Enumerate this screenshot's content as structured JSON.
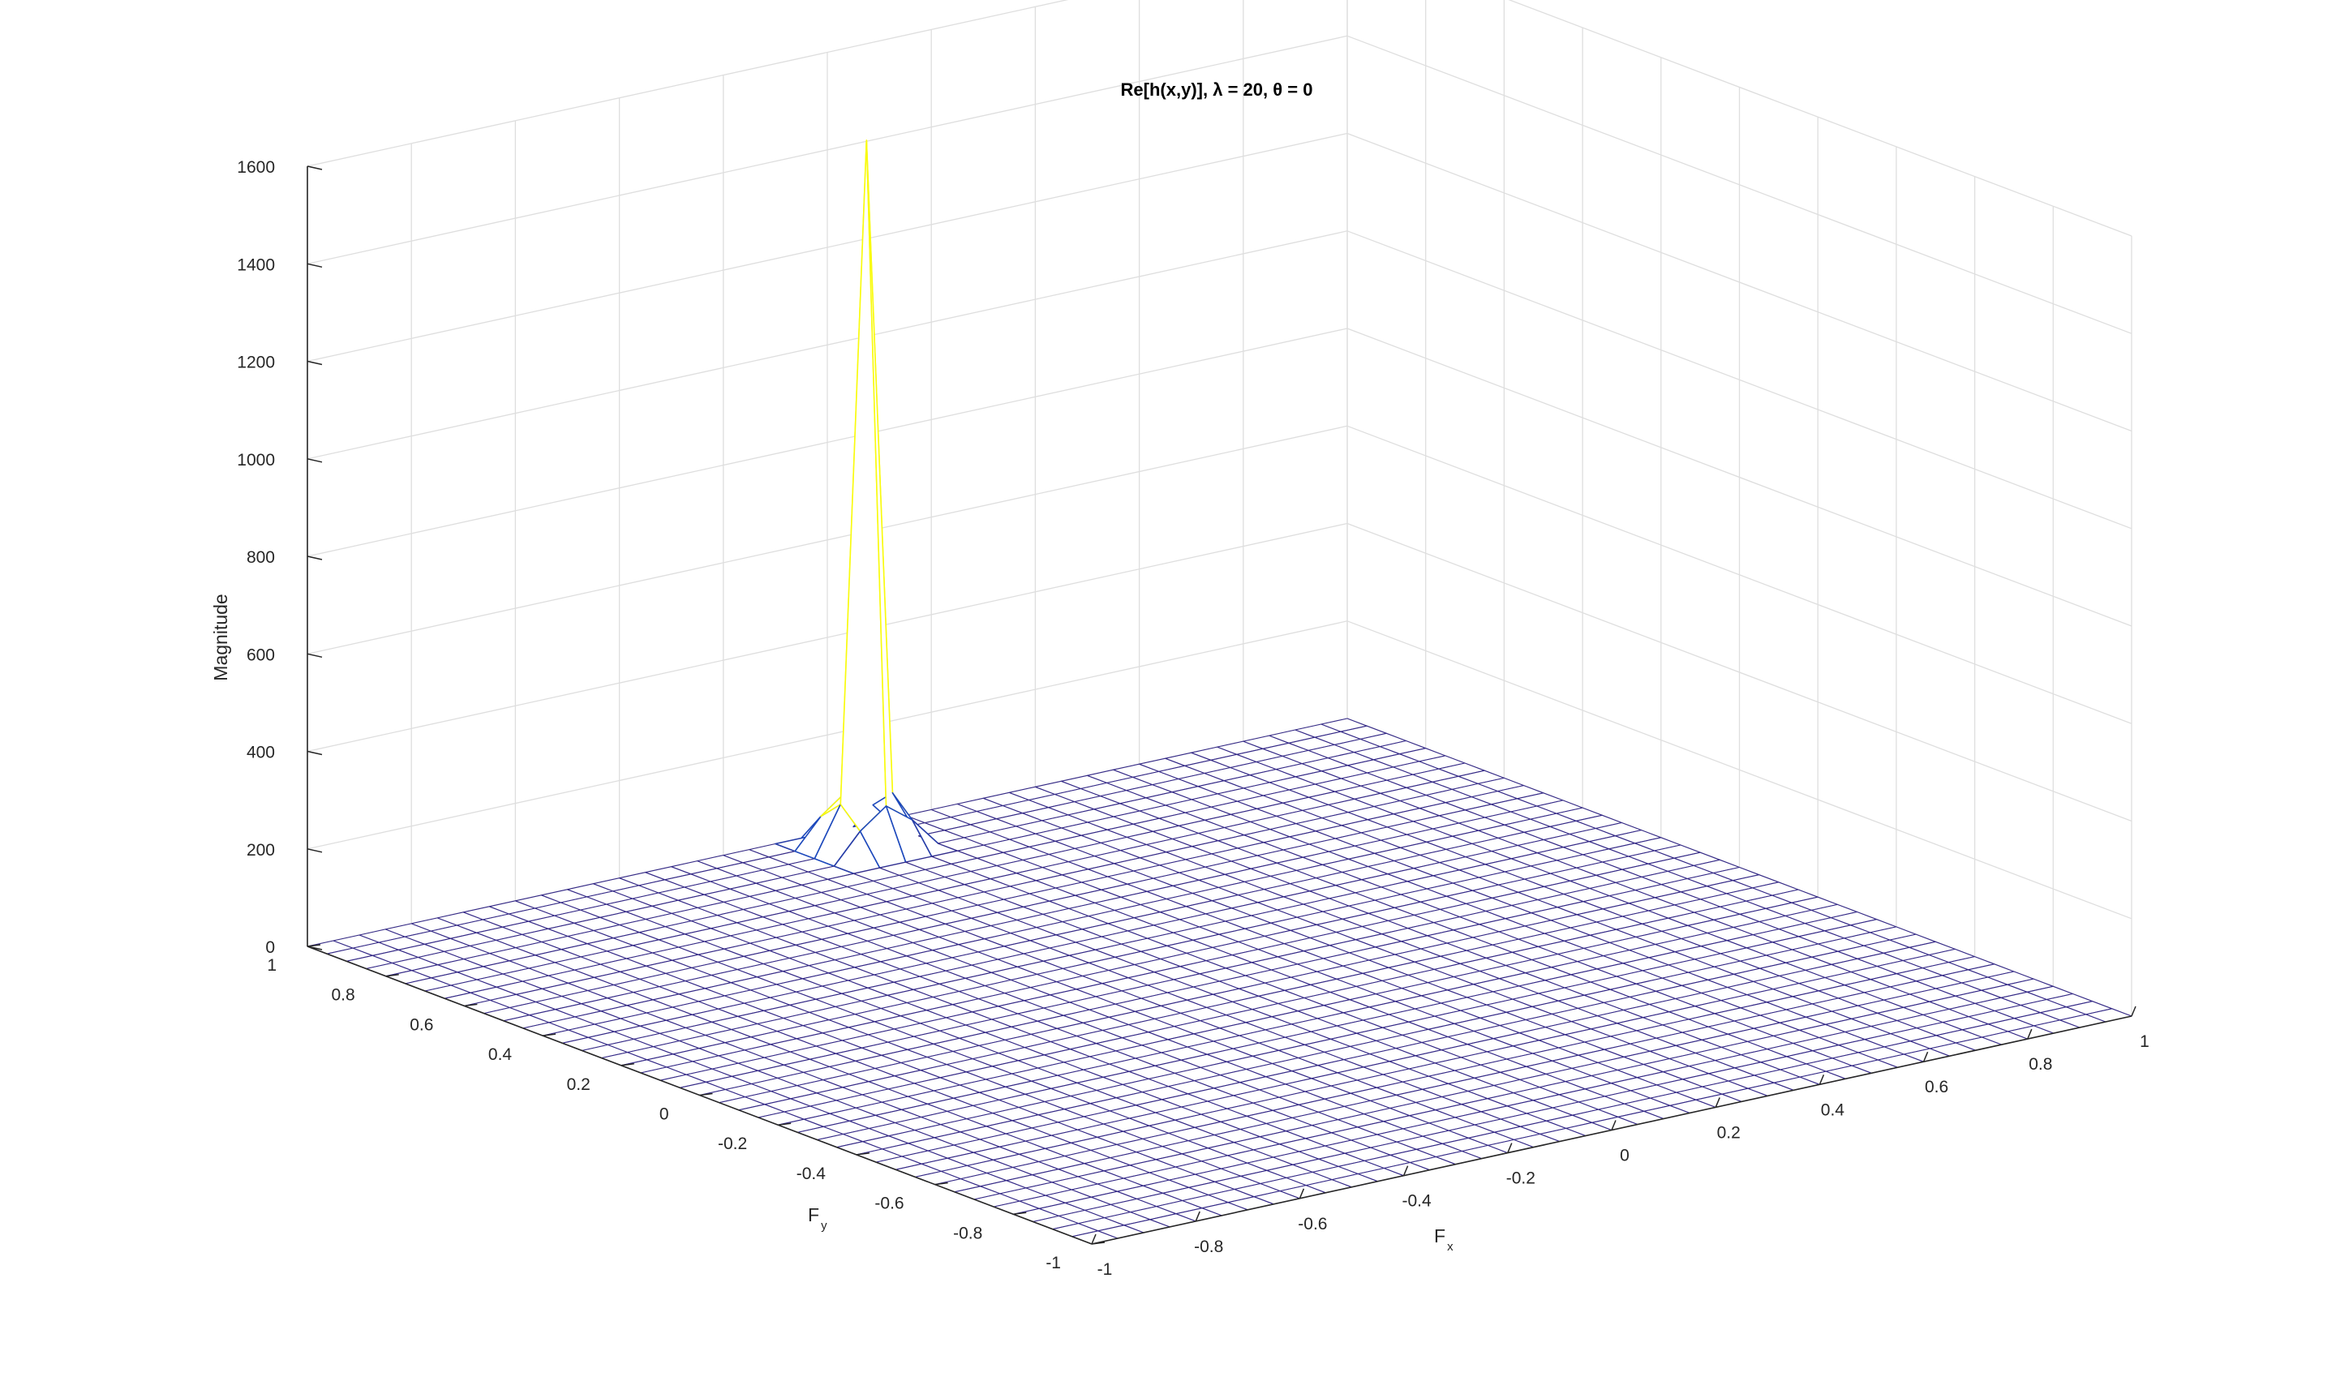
{
  "chart_data": {
    "type": "surface",
    "title": "Re[h(x,y)], λ = 20, θ = 0",
    "xlabel": "F",
    "xlabel_sub": "x",
    "ylabel": "F",
    "ylabel_sub": "y",
    "zlabel": "Magnitude",
    "xlim": [
      -1,
      1
    ],
    "ylim": [
      -1,
      1
    ],
    "zlim": [
      0,
      1600
    ],
    "x_ticks": [
      "-1",
      "-0.8",
      "-0.6",
      "-0.4",
      "-0.2",
      "0",
      "0.2",
      "0.4",
      "0.6",
      "0.8",
      "1"
    ],
    "y_ticks": [
      "-1",
      "-0.8",
      "-0.6",
      "-0.4",
      "-0.2",
      "0",
      "0.2",
      "0.4",
      "0.6",
      "0.8",
      "1"
    ],
    "z_ticks": [
      "0",
      "200",
      "400",
      "600",
      "800",
      "1000",
      "1200",
      "1400",
      "1600"
    ],
    "grid": true,
    "mesh_resolution": 40,
    "surface": {
      "background_level": 0,
      "peak_center": [
        0,
        0.9
      ],
      "peak_value": 1450,
      "side_lobe_values": [
        150,
        100,
        60
      ],
      "colormap": "parula"
    }
  }
}
